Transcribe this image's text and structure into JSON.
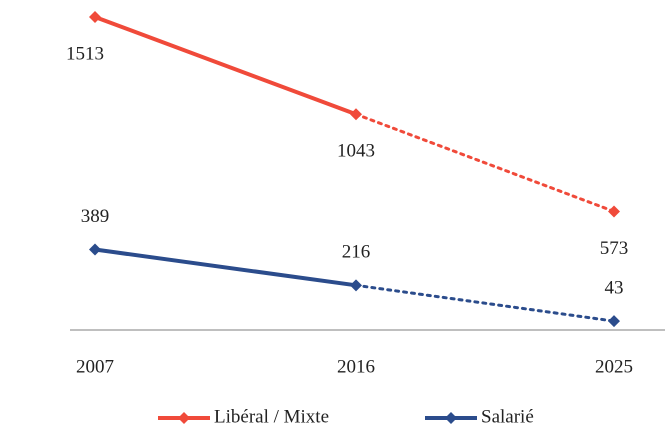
{
  "chart_data": {
    "type": "line",
    "categories": [
      "2007",
      "2016",
      "2025"
    ],
    "series": [
      {
        "name": "Libéral / Mixte",
        "color": "#f04a3a",
        "values": [
          1513,
          1043,
          573
        ],
        "segment_styles": [
          "solid",
          "dotted"
        ]
      },
      {
        "name": "Salarié",
        "color": "#2b4c8c",
        "values": [
          389,
          216,
          43
        ],
        "segment_styles": [
          "solid",
          "dotted"
        ]
      }
    ],
    "legend": "bottom"
  }
}
